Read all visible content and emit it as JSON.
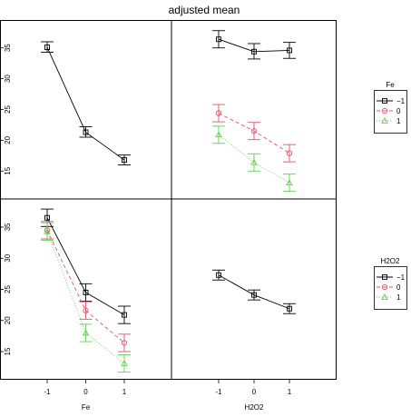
{
  "chart_data": {
    "type": "line",
    "title": "adjusted mean",
    "x_ticks": [
      "-1",
      "0",
      "1"
    ],
    "y_ticks": [
      15,
      20,
      25,
      30,
      35
    ],
    "ylim": [
      11.5,
      38.5
    ],
    "grid": false,
    "colors": {
      "-1": "#000000",
      "0": "#df536b",
      "1": "#61d04f"
    },
    "panels": [
      {
        "id": "top-left",
        "xlabel": "",
        "series": [
          {
            "level": "-1",
            "values": [
              35.1,
              21.3,
              16.8
            ],
            "lower": [
              34.3,
              20.5,
              16.0
            ],
            "upper": [
              36.0,
              22.2,
              17.6
            ]
          }
        ]
      },
      {
        "id": "top-right",
        "xlabel": "",
        "series": [
          {
            "level": "-1",
            "values": [
              36.4,
              34.4,
              34.6
            ],
            "lower": [
              35.0,
              33.2,
              33.3
            ],
            "upper": [
              37.8,
              35.7,
              35.9
            ]
          },
          {
            "level": "0",
            "values": [
              24.4,
              21.5,
              17.9
            ],
            "lower": [
              23.0,
              20.1,
              16.5
            ],
            "upper": [
              25.8,
              22.9,
              19.3
            ]
          },
          {
            "level": "1",
            "values": [
              20.9,
              16.4,
              13.1
            ],
            "lower": [
              19.5,
              15.0,
              11.7
            ],
            "upper": [
              22.3,
              17.8,
              14.5
            ]
          }
        ]
      },
      {
        "id": "bottom-left",
        "xlabel": "Fe",
        "series": [
          {
            "level": "-1",
            "values": [
              36.5,
              24.5,
              20.9
            ],
            "lower": [
              35.1,
              23.1,
              19.5
            ],
            "upper": [
              37.9,
              25.9,
              22.3
            ]
          },
          {
            "level": "0",
            "values": [
              34.5,
              21.6,
              16.4
            ],
            "lower": [
              33.1,
              20.2,
              15.0
            ],
            "upper": [
              35.9,
              23.0,
              17.8
            ]
          },
          {
            "level": "1",
            "values": [
              34.3,
              18.0,
              13.1
            ],
            "lower": [
              32.9,
              16.6,
              11.7
            ],
            "upper": [
              35.7,
              19.4,
              14.5
            ]
          }
        ]
      },
      {
        "id": "bottom-right",
        "xlabel": "H2O2",
        "series": [
          {
            "level": "-1",
            "values": [
              27.3,
              24.1,
              21.9
            ],
            "lower": [
              26.5,
              23.3,
              21.1
            ],
            "upper": [
              28.1,
              24.9,
              22.7
            ]
          }
        ]
      }
    ],
    "legends": [
      {
        "title": "Fe",
        "entries": [
          "−1",
          "0",
          "1"
        ]
      },
      {
        "title": "H2O2",
        "entries": [
          "−1",
          "0",
          "1"
        ]
      }
    ]
  }
}
